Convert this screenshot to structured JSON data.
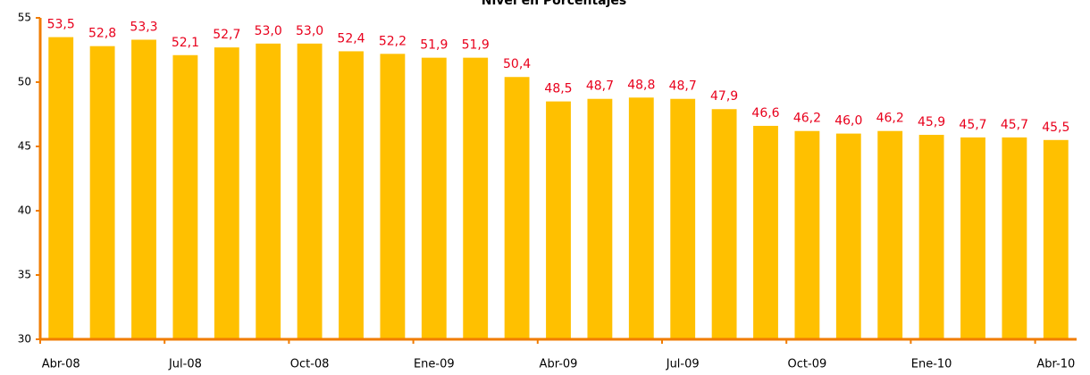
{
  "chart_data": {
    "type": "bar",
    "title": "Nivel en Porcentajes",
    "categories": [
      "Abr-08",
      null,
      null,
      "Jul-08",
      null,
      null,
      "Oct-08",
      null,
      null,
      "Ene-09",
      null,
      null,
      "Abr-09",
      null,
      null,
      "Jul-09",
      null,
      null,
      "Oct-09",
      null,
      null,
      "Ene-10",
      null,
      null,
      "Abr-10"
    ],
    "values": [
      53.5,
      52.8,
      53.3,
      52.1,
      52.7,
      53.0,
      53.0,
      52.4,
      52.2,
      51.9,
      51.9,
      50.4,
      48.5,
      48.7,
      48.8,
      48.7,
      47.9,
      46.6,
      46.2,
      46.0,
      46.2,
      45.9,
      45.7,
      45.7,
      45.5
    ],
    "value_labels": [
      "53,5",
      "52,8",
      "53,3",
      "52,1",
      "52,7",
      "53,0",
      "53,0",
      "52,4",
      "52,2",
      "51,9",
      "51,9",
      "50,4",
      "48,5",
      "48,7",
      "48,8",
      "48,7",
      "47,9",
      "46,6",
      "46,2",
      "46,0",
      "46,2",
      "45,9",
      "45,7",
      "45,7",
      "45,5"
    ],
    "color": "#ffc000",
    "label_color": "#e8001c",
    "axis_color": "#f07c00",
    "ylim": [
      30,
      55
    ],
    "yticks": [
      30,
      35,
      40,
      45,
      50,
      55
    ],
    "grid": false
  }
}
